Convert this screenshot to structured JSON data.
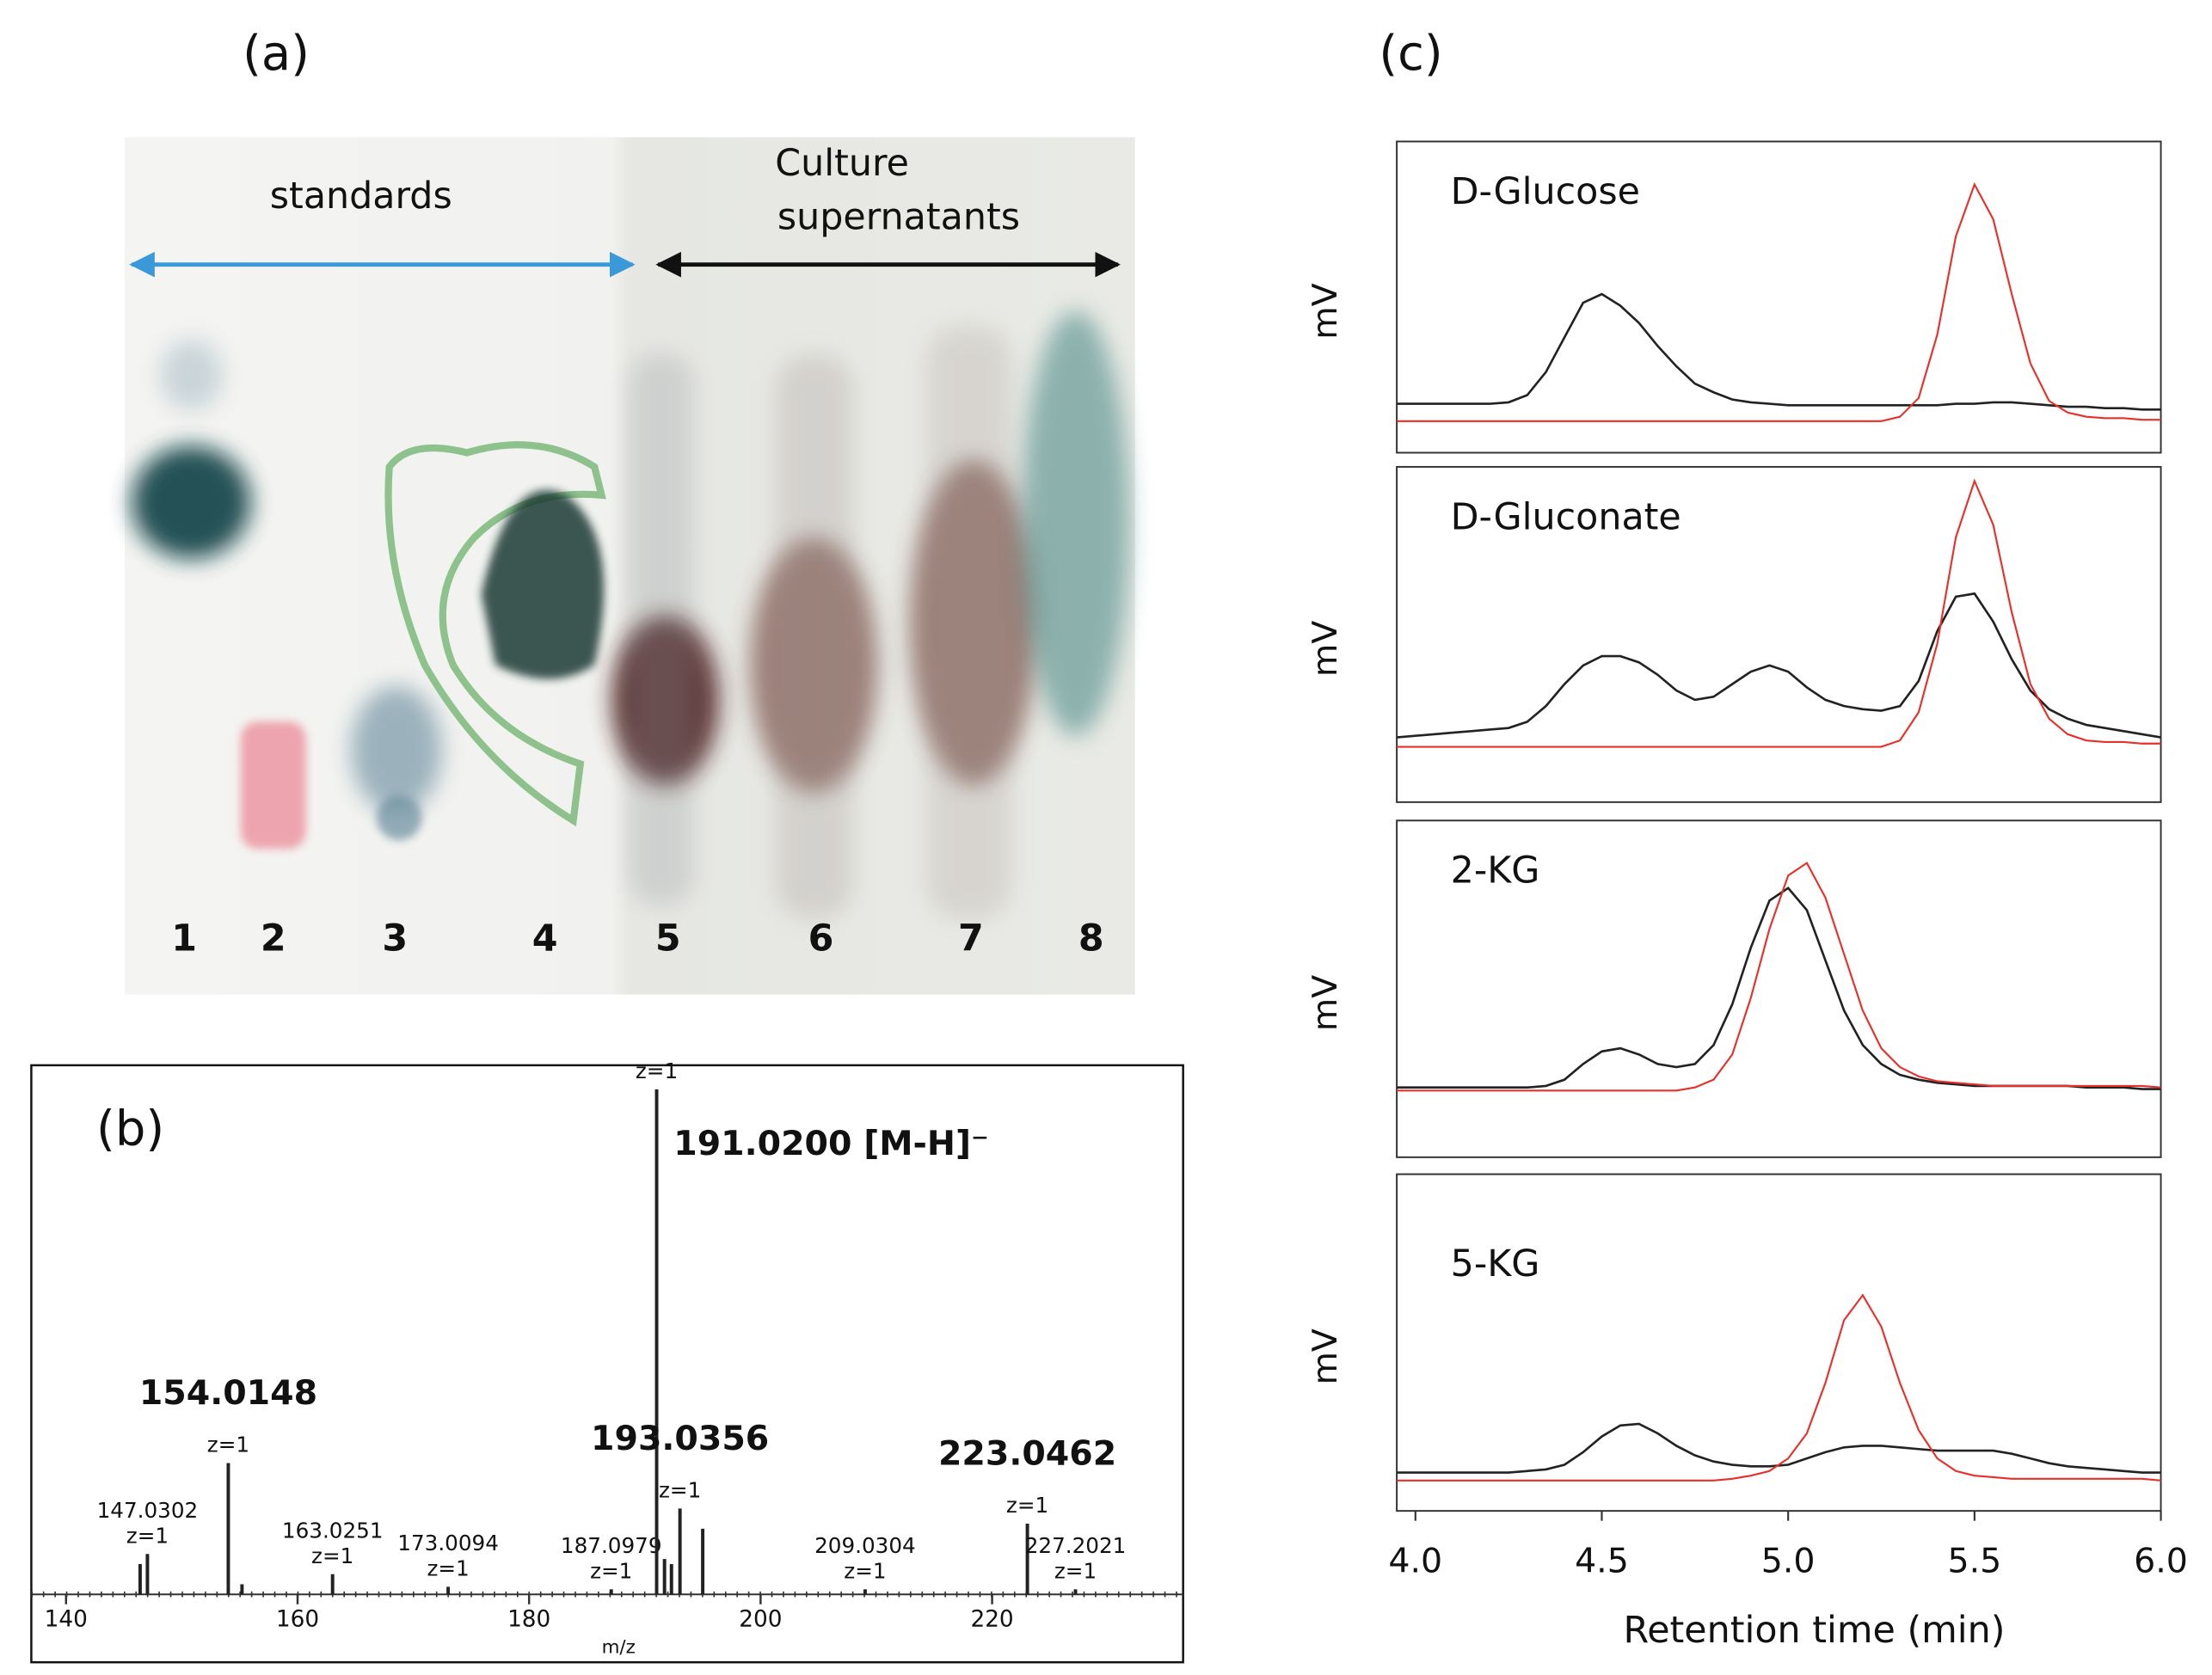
{
  "panel_labels": [
    "(a)",
    "(b)",
    "(c)"
  ],
  "tlc": {
    "standards": "standards",
    "culture": [
      "Culture",
      "supernatants"
    ],
    "lanes": [
      "1",
      "2",
      "3",
      "4",
      "5",
      "6",
      "7",
      "8"
    ]
  },
  "chart_data": [
    {
      "type": "stem",
      "x": [
        146.4,
        147.0302,
        154.0148,
        155.2,
        163.0251,
        173.0094,
        187.0979,
        191.02,
        191.7,
        192.3,
        193.0356,
        195.0,
        209.0304,
        223.0462,
        227.2021
      ],
      "values": [
        6,
        8,
        26,
        2,
        4,
        1.5,
        1,
        100,
        7,
        6,
        17,
        13,
        1,
        14,
        1
      ],
      "labels": [
        null,
        "147.0302",
        "154.0148",
        null,
        "163.0251",
        "173.0094",
        "187.0979",
        "191.0200 [M-H]⁻",
        null,
        null,
        "193.0356",
        null,
        "209.0304",
        "223.0462",
        "227.2021"
      ],
      "charges": [
        null,
        "z=1",
        "z=1",
        null,
        "z=1",
        "z=1",
        "z=1",
        "z=1",
        null,
        null,
        "z=1",
        null,
        "z=1",
        "z=1",
        "z=1"
      ],
      "xlim": [
        137,
        236.5
      ],
      "ylim": [
        0,
        100
      ],
      "xticks": [
        140,
        160,
        180,
        200,
        220
      ],
      "xlabel": "m/z",
      "color": "#222222"
    },
    {
      "type": "line",
      "title": "D-Glucose",
      "ylabel": "mV",
      "x": [
        3.95,
        4.0,
        4.05,
        4.1,
        4.15,
        4.2,
        4.25,
        4.3,
        4.35,
        4.4,
        4.45,
        4.5,
        4.55,
        4.6,
        4.65,
        4.7,
        4.75,
        4.8,
        4.85,
        4.9,
        4.95,
        5.0,
        5.05,
        5.1,
        5.15,
        5.2,
        5.25,
        5.3,
        5.35,
        5.4,
        5.45,
        5.5,
        5.55,
        5.6,
        5.65,
        5.7,
        5.75,
        5.8,
        5.85,
        5.9,
        5.95,
        6.0
      ],
      "xlim": [
        3.95,
        6.0
      ],
      "ylim": [
        0,
        100
      ],
      "series": [
        {
          "color": "#222222",
          "values": [
            14,
            14,
            14,
            14,
            14,
            14,
            14.5,
            17,
            25,
            37,
            49,
            52,
            48,
            42,
            34,
            27,
            21,
            18,
            15.5,
            14.5,
            14,
            13.5,
            13.5,
            13.5,
            13.5,
            13.5,
            13.5,
            13.5,
            13.5,
            13.5,
            14,
            14,
            14.5,
            14.5,
            14,
            13.5,
            13,
            13,
            12.5,
            12.5,
            12,
            12
          ]
        },
        {
          "color": "#e8302a",
          "values": [
            8,
            8,
            8,
            8,
            8,
            8,
            8,
            8,
            8,
            8,
            8,
            8,
            8,
            8,
            8,
            8,
            8,
            8,
            8,
            8,
            8,
            8,
            8,
            8,
            8,
            8,
            8,
            9.5,
            16,
            38,
            72,
            90,
            78,
            52,
            28,
            15,
            11,
            9.5,
            9,
            9,
            8.5,
            8.5
          ]
        }
      ]
    },
    {
      "type": "line",
      "title": "D-Gluconate",
      "ylabel": "mV",
      "x": [
        3.95,
        4.0,
        4.05,
        4.1,
        4.15,
        4.2,
        4.25,
        4.3,
        4.35,
        4.4,
        4.45,
        4.5,
        4.55,
        4.6,
        4.65,
        4.7,
        4.75,
        4.8,
        4.85,
        4.9,
        4.95,
        5.0,
        5.05,
        5.1,
        5.15,
        5.2,
        5.25,
        5.3,
        5.35,
        5.4,
        5.45,
        5.5,
        5.55,
        5.6,
        5.65,
        5.7,
        5.75,
        5.8,
        5.85,
        5.9,
        5.95,
        6.0
      ],
      "xlim": [
        3.95,
        6.0
      ],
      "ylim": [
        0,
        100
      ],
      "series": [
        {
          "color": "#222222",
          "values": [
            18,
            18.5,
            19,
            19.5,
            20,
            20.5,
            21,
            23,
            28,
            35,
            41,
            44,
            44,
            42,
            38,
            33,
            30,
            31,
            35,
            39,
            41,
            39,
            34,
            30,
            28,
            27,
            26.5,
            28,
            36,
            52,
            63,
            64,
            55,
            43,
            33,
            27,
            24,
            22,
            21,
            20,
            19,
            18
          ]
        },
        {
          "color": "#e8302a",
          "values": [
            15,
            15,
            15,
            15,
            15,
            15,
            15,
            15,
            15,
            15,
            15,
            15,
            15,
            15,
            15,
            15,
            15,
            15,
            15,
            15,
            15,
            15,
            15,
            15,
            15,
            15,
            15,
            17,
            26,
            48,
            82,
            100,
            86,
            58,
            35,
            24,
            19,
            17,
            16.5,
            16.5,
            16,
            16
          ]
        }
      ]
    },
    {
      "type": "line",
      "title": "2-KG",
      "ylabel": "mV",
      "x": [
        3.95,
        4.0,
        4.05,
        4.1,
        4.15,
        4.2,
        4.25,
        4.3,
        4.35,
        4.4,
        4.45,
        4.5,
        4.55,
        4.6,
        4.65,
        4.7,
        4.75,
        4.8,
        4.85,
        4.9,
        4.95,
        5.0,
        5.05,
        5.1,
        5.15,
        5.2,
        5.25,
        5.3,
        5.35,
        5.4,
        5.45,
        5.5,
        5.55,
        5.6,
        5.65,
        5.7,
        5.75,
        5.8,
        5.85,
        5.9,
        5.95,
        6.0
      ],
      "xlim": [
        3.95,
        6.0
      ],
      "ylim": [
        0,
        100
      ],
      "series": [
        {
          "color": "#222222",
          "values": [
            19.5,
            19.5,
            19.5,
            19.5,
            19.5,
            19.5,
            19.5,
            19.5,
            20,
            22,
            27,
            31,
            32,
            30,
            27,
            26,
            27,
            33,
            46,
            64,
            79,
            83,
            76,
            60,
            44,
            33,
            27,
            23.5,
            22,
            21,
            20.5,
            20,
            20,
            20,
            20,
            20,
            20,
            19.5,
            19.5,
            19.5,
            19,
            19
          ]
        },
        {
          "color": "#e8302a",
          "values": [
            18.5,
            18.5,
            18.5,
            18.5,
            18.5,
            18.5,
            18.5,
            18.5,
            18.5,
            18.5,
            18.5,
            18.5,
            18.5,
            18.5,
            18.5,
            18.5,
            19.5,
            22,
            30,
            48,
            70,
            87,
            91,
            80,
            62,
            44,
            32,
            26,
            23,
            21.5,
            21,
            20.5,
            20,
            20,
            20,
            20,
            20,
            20,
            20,
            20,
            20,
            19.5
          ]
        }
      ]
    },
    {
      "type": "line",
      "title": "5-KG",
      "ylabel": "mV",
      "x": [
        3.95,
        4.0,
        4.05,
        4.1,
        4.15,
        4.2,
        4.25,
        4.3,
        4.35,
        4.4,
        4.45,
        4.5,
        4.55,
        4.6,
        4.65,
        4.7,
        4.75,
        4.8,
        4.85,
        4.9,
        4.95,
        5.0,
        5.05,
        5.1,
        5.15,
        5.2,
        5.25,
        5.3,
        5.35,
        5.4,
        5.45,
        5.5,
        5.55,
        5.6,
        5.65,
        5.7,
        5.75,
        5.8,
        5.85,
        5.9,
        5.95,
        6.0
      ],
      "xlim": [
        3.95,
        6.0
      ],
      "ylim": [
        0,
        100
      ],
      "xticks": [
        {
          "value": 4.0,
          "label": "4.0"
        },
        4.5,
        {
          "value": 5.0,
          "label": "5.0"
        },
        5.5,
        {
          "value": 6.0,
          "label": "6.0"
        }
      ],
      "xlabel": "Retention time (min)",
      "series": [
        {
          "color": "#222222",
          "values": [
            9.5,
            9.5,
            9.5,
            9.5,
            9.5,
            9.5,
            9.5,
            10,
            10.5,
            12,
            16,
            21,
            24.5,
            25,
            22,
            18,
            15,
            13,
            12,
            11.5,
            11.5,
            12,
            14,
            16,
            17.5,
            18,
            18,
            17.5,
            17,
            16.5,
            16.5,
            16.5,
            16.5,
            15.5,
            14,
            12.5,
            11.5,
            11,
            10.5,
            10,
            9.5,
            9.5
          ]
        },
        {
          "color": "#e8302a",
          "values": [
            7,
            7,
            7,
            7,
            7,
            7,
            7,
            7,
            7,
            7,
            7,
            7,
            7,
            7,
            7,
            7,
            7,
            7,
            7.5,
            8.5,
            10,
            14,
            22,
            38,
            58,
            66,
            56,
            38,
            23,
            14,
            10,
            8.5,
            8,
            7.5,
            7.5,
            7.5,
            7.5,
            7.5,
            7.5,
            7.5,
            7.5,
            7
          ]
        }
      ]
    }
  ]
}
